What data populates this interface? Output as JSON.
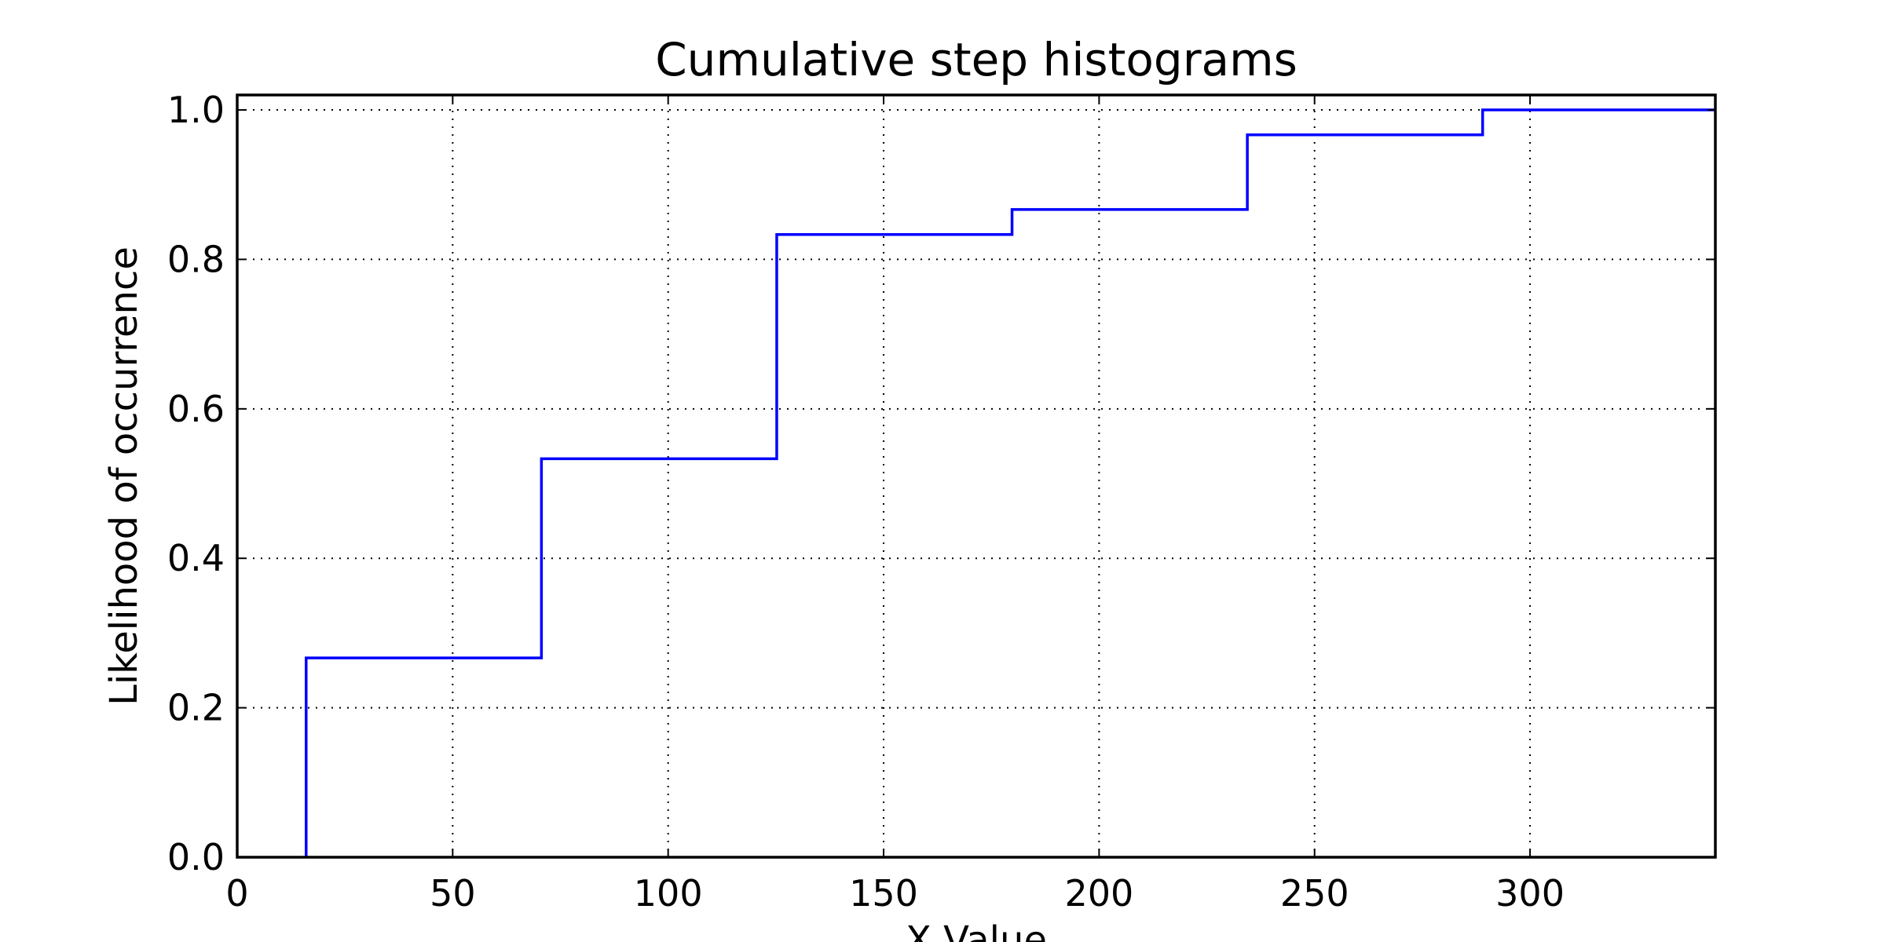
{
  "chart_data": {
    "type": "line",
    "subtype": "cumulative-step-histogram",
    "title": "Cumulative step histograms",
    "xlabel": "X Value",
    "ylabel": "Likelihood of occurrence",
    "xlim": [
      0,
      343
    ],
    "ylim": [
      0,
      1.02
    ],
    "x_ticks": [
      0,
      50,
      100,
      150,
      200,
      250,
      300
    ],
    "x_tick_labels": [
      "0",
      "50",
      "100",
      "150",
      "200",
      "250",
      "300"
    ],
    "y_ticks": [
      0,
      0.2,
      0.4,
      0.6,
      0.8,
      1.0
    ],
    "y_tick_labels": [
      "0.0",
      "0.2",
      "0.4",
      "0.6",
      "0.8",
      "1.0"
    ],
    "grid": true,
    "grid_style": "dotted",
    "series": [
      {
        "color": "#0000ff",
        "bin_edges": [
          16,
          70.6,
          125.2,
          179.8,
          234.4,
          289,
          343.6
        ],
        "cumulative_values": [
          0.2667,
          0.5333,
          0.8333,
          0.8667,
          0.9667,
          1.0
        ]
      }
    ]
  }
}
